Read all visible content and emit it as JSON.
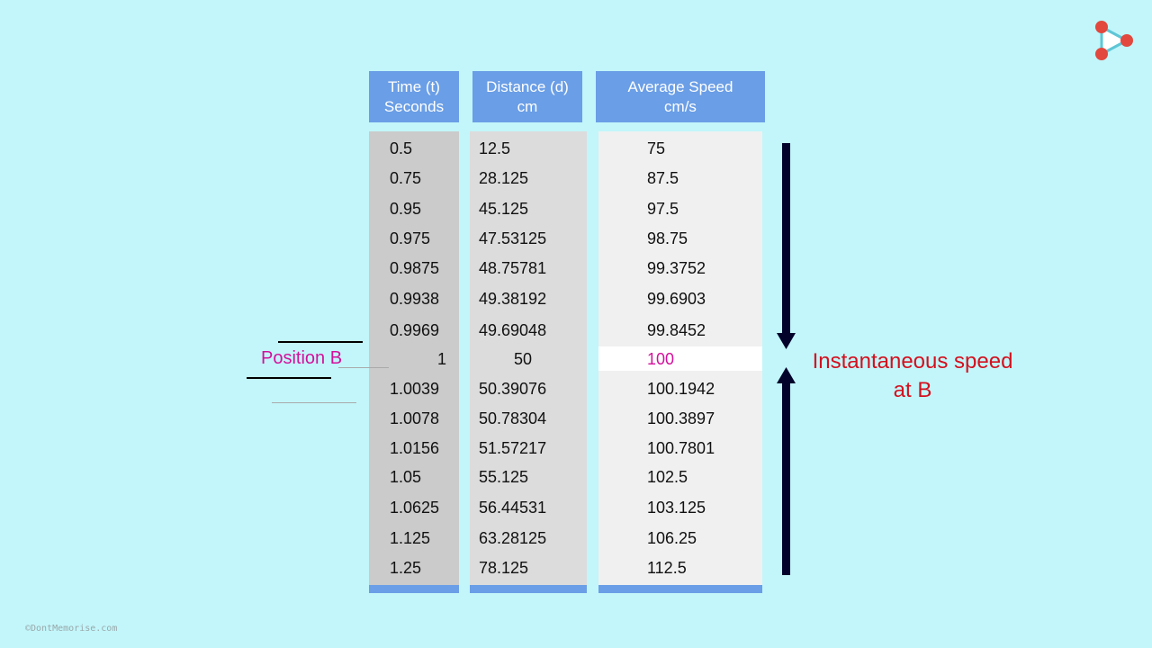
{
  "table": {
    "headers": {
      "time": {
        "line1": "Time (t)",
        "line2": "Seconds"
      },
      "distance": {
        "line1": "Distance (d)",
        "line2": "cm"
      },
      "speed": {
        "line1": "Average Speed",
        "line2": "cm/s"
      }
    },
    "time": [
      "0.5",
      "0.75",
      "0.95",
      "0.975",
      "0.9875",
      "0.9938",
      "0.9969",
      "1",
      "1.0039",
      "1.0078",
      "1.0156",
      "1.05",
      "1.0625",
      "1.125",
      "1.25"
    ],
    "distance": [
      "12.5",
      "28.125",
      "45.125",
      "47.53125",
      "48.75781",
      "49.38192",
      "49.69048",
      "50",
      "50.39076",
      "50.78304",
      "51.57217",
      "55.125",
      "56.44531",
      "63.28125",
      "78.125"
    ],
    "speed": [
      "75",
      "87.5",
      "97.5",
      "98.75",
      "99.3752",
      "99.6903",
      "99.8452",
      "100",
      "100.1942",
      "100.3897",
      "100.7801",
      "102.5",
      "103.125",
      "106.25",
      "112.5"
    ],
    "highlight_row": 7
  },
  "labels": {
    "position_b": "Position B",
    "instantaneous_line1": "Instantaneous speed",
    "instantaneous_line2": "at B"
  },
  "credit": "©DontMemorise.com",
  "colors": {
    "header_bg": "#6a9ee6",
    "page_bg": "#c2f6fa",
    "position_text": "#d4109b",
    "instant_text": "#d4101e",
    "arrow": "#02022a"
  },
  "icons": {
    "logo": "play-triangle-logo-icon",
    "arrow_down": "arrow-down-icon",
    "arrow_up": "arrow-up-icon"
  }
}
